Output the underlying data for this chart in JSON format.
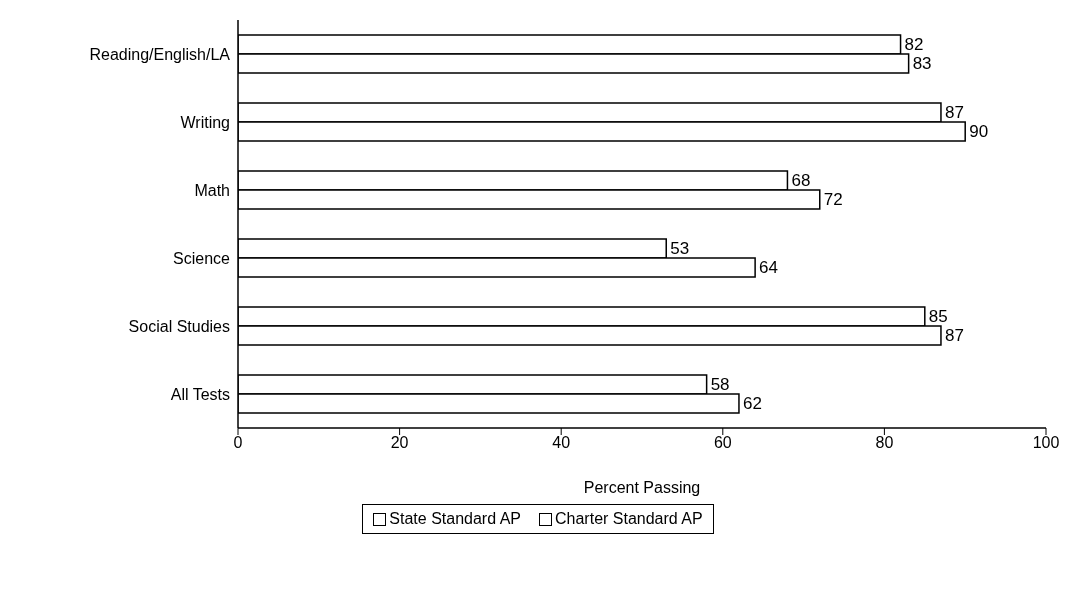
{
  "chart_data": {
    "type": "bar",
    "orientation": "horizontal",
    "xlabel": "Percent Passing",
    "categories": [
      "Reading/English/LA",
      "Writing",
      "Math",
      "Science",
      "Social Studies",
      "All Tests"
    ],
    "series": [
      {
        "name": "State Standard AP",
        "color": "#ffffff",
        "values": [
          82,
          87,
          68,
          53,
          85,
          58
        ]
      },
      {
        "name": "Charter Standard AP",
        "color": "#ffffff",
        "values": [
          83,
          90,
          72,
          64,
          87,
          62
        ]
      }
    ],
    "xlim": [
      0,
      100
    ],
    "xticks": [
      0,
      20,
      40,
      60,
      80,
      100
    ],
    "data_labels": true,
    "grid": false,
    "legend": "bottom"
  }
}
